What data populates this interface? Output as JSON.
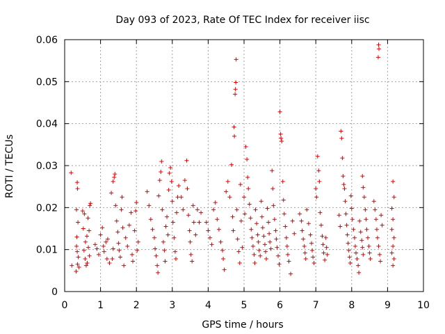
{
  "chart_data": {
    "type": "scatter",
    "title": "Day 093 of 2023, Rate Of TEC Index for receiver iisc",
    "xlabel": "GPS time / hours",
    "ylabel": "ROTI / TECUs",
    "xlim": [
      0,
      10
    ],
    "ylim": [
      0,
      0.06
    ],
    "x_ticks": [
      0,
      1,
      2,
      3,
      4,
      5,
      6,
      7,
      8,
      9,
      10
    ],
    "y_ticks": [
      0,
      0.01,
      0.02,
      0.03,
      0.04,
      0.05,
      0.06
    ],
    "x_tick_labels": [
      "0",
      "1",
      "2",
      "3",
      "4",
      "5",
      "6",
      "7",
      "8",
      "9",
      "10"
    ],
    "y_tick_labels": [
      "0",
      "0.01",
      "0.02",
      "0.03",
      "0.04",
      "0.05",
      "0.06"
    ],
    "grid": true,
    "marker": "plus",
    "color": "#e00000",
    "points": [
      [
        0.18,
        0.0283
      ],
      [
        0.2,
        0.0062
      ],
      [
        0.35,
        0.026
      ],
      [
        0.36,
        0.0245
      ],
      [
        0.33,
        0.0195
      ],
      [
        0.34,
        0.013
      ],
      [
        0.35,
        0.0095
      ],
      [
        0.36,
        0.0065
      ],
      [
        0.32,
        0.0048
      ],
      [
        0.38,
        0.0082
      ],
      [
        0.33,
        0.0108
      ],
      [
        0.37,
        0.0165
      ],
      [
        0.4,
        0.0058
      ],
      [
        0.5,
        0.0192
      ],
      [
        0.55,
        0.0185
      ],
      [
        0.52,
        0.015
      ],
      [
        0.58,
        0.0118
      ],
      [
        0.54,
        0.0098
      ],
      [
        0.57,
        0.0078
      ],
      [
        0.6,
        0.0062
      ],
      [
        0.62,
        0.0132
      ],
      [
        0.65,
        0.0175
      ],
      [
        0.68,
        0.0145
      ],
      [
        0.7,
        0.0205
      ],
      [
        0.72,
        0.021
      ],
      [
        0.66,
        0.0105
      ],
      [
        0.69,
        0.0085
      ],
      [
        0.63,
        0.0068
      ],
      [
        0.85,
        0.0112
      ],
      [
        0.9,
        0.0102
      ],
      [
        0.95,
        0.0088
      ],
      [
        1.0,
        0.0135
      ],
      [
        1.05,
        0.0152
      ],
      [
        1.08,
        0.0108
      ],
      [
        1.1,
        0.0095
      ],
      [
        1.15,
        0.0118
      ],
      [
        1.18,
        0.0078
      ],
      [
        1.2,
        0.0125
      ],
      [
        1.25,
        0.0068
      ],
      [
        1.3,
        0.0235
      ],
      [
        1.35,
        0.0262
      ],
      [
        1.38,
        0.0272
      ],
      [
        1.4,
        0.028
      ],
      [
        1.42,
        0.0205
      ],
      [
        1.45,
        0.0168
      ],
      [
        1.48,
        0.0142
      ],
      [
        1.5,
        0.0115
      ],
      [
        1.52,
        0.0098
      ],
      [
        1.55,
        0.0082
      ],
      [
        1.58,
        0.0195
      ],
      [
        1.6,
        0.0225
      ],
      [
        1.62,
        0.0152
      ],
      [
        1.65,
        0.0062
      ],
      [
        1.35,
        0.0102
      ],
      [
        1.33,
        0.0078
      ],
      [
        1.7,
        0.0128
      ],
      [
        1.75,
        0.0108
      ],
      [
        1.8,
        0.0158
      ],
      [
        1.85,
        0.0188
      ],
      [
        1.88,
        0.0088
      ],
      [
        1.9,
        0.0072
      ],
      [
        1.95,
        0.0145
      ],
      [
        1.98,
        0.0192
      ],
      [
        2.0,
        0.0212
      ],
      [
        2.02,
        0.0098
      ],
      [
        2.05,
        0.0118
      ],
      [
        2.3,
        0.0238
      ],
      [
        2.35,
        0.0205
      ],
      [
        2.4,
        0.0172
      ],
      [
        2.45,
        0.0148
      ],
      [
        2.5,
        0.0128
      ],
      [
        2.52,
        0.0102
      ],
      [
        2.55,
        0.0085
      ],
      [
        2.58,
        0.0062
      ],
      [
        2.6,
        0.0045
      ],
      [
        2.62,
        0.0228
      ],
      [
        2.65,
        0.0265
      ],
      [
        2.68,
        0.0285
      ],
      [
        2.7,
        0.031
      ],
      [
        2.72,
        0.0195
      ],
      [
        2.75,
        0.0118
      ],
      [
        2.78,
        0.0098
      ],
      [
        2.8,
        0.0072
      ],
      [
        2.82,
        0.0155
      ],
      [
        2.85,
        0.0178
      ],
      [
        2.88,
        0.0135
      ],
      [
        2.9,
        0.0242
      ],
      [
        2.92,
        0.0282
      ],
      [
        2.95,
        0.0295
      ],
      [
        2.98,
        0.0262
      ],
      [
        3.0,
        0.0215
      ],
      [
        3.02,
        0.0165
      ],
      [
        3.05,
        0.0128
      ],
      [
        3.08,
        0.0095
      ],
      [
        3.1,
        0.0078
      ],
      [
        3.12,
        0.0188
      ],
      [
        3.15,
        0.0225
      ],
      [
        3.18,
        0.0252
      ],
      [
        3.25,
        0.0225
      ],
      [
        3.3,
        0.0195
      ],
      [
        3.35,
        0.0265
      ],
      [
        3.4,
        0.0312
      ],
      [
        3.42,
        0.0245
      ],
      [
        3.45,
        0.0182
      ],
      [
        3.48,
        0.0145
      ],
      [
        3.5,
        0.0118
      ],
      [
        3.52,
        0.0088
      ],
      [
        3.55,
        0.0072
      ],
      [
        3.58,
        0.0205
      ],
      [
        3.6,
        0.0165
      ],
      [
        3.65,
        0.0135
      ],
      [
        3.7,
        0.0195
      ],
      [
        3.75,
        0.0165
      ],
      [
        3.8,
        0.0188
      ],
      [
        3.95,
        0.0165
      ],
      [
        4.0,
        0.0145
      ],
      [
        4.05,
        0.0128
      ],
      [
        4.1,
        0.0112
      ],
      [
        4.15,
        0.0195
      ],
      [
        4.2,
        0.0212
      ],
      [
        4.25,
        0.0172
      ],
      [
        4.3,
        0.0148
      ],
      [
        4.35,
        0.0118
      ],
      [
        4.4,
        0.0098
      ],
      [
        4.42,
        0.0078
      ],
      [
        4.45,
        0.0052
      ],
      [
        4.5,
        0.0238
      ],
      [
        4.55,
        0.0262
      ],
      [
        4.6,
        0.0225
      ],
      [
        4.65,
        0.0302
      ],
      [
        4.68,
        0.0178
      ],
      [
        4.7,
        0.0145
      ],
      [
        4.72,
        0.0392
      ],
      [
        4.73,
        0.037
      ],
      [
        4.75,
        0.047
      ],
      [
        4.76,
        0.0482
      ],
      [
        4.77,
        0.0498
      ],
      [
        4.78,
        0.0553
      ],
      [
        4.8,
        0.0195
      ],
      [
        4.82,
        0.0125
      ],
      [
        4.85,
        0.0095
      ],
      [
        4.88,
        0.0068
      ],
      [
        4.9,
        0.0255
      ],
      [
        4.92,
        0.0168
      ],
      [
        4.95,
        0.0105
      ],
      [
        5.0,
        0.0225
      ],
      [
        5.02,
        0.0185
      ],
      [
        5.05,
        0.0345
      ],
      [
        5.08,
        0.0315
      ],
      [
        5.1,
        0.0272
      ],
      [
        5.12,
        0.0245
      ],
      [
        5.15,
        0.0208
      ],
      [
        5.18,
        0.0175
      ],
      [
        5.2,
        0.0148
      ],
      [
        5.22,
        0.0128
      ],
      [
        5.25,
        0.0108
      ],
      [
        5.28,
        0.0088
      ],
      [
        5.3,
        0.0068
      ],
      [
        5.32,
        0.0195
      ],
      [
        5.35,
        0.0162
      ],
      [
        5.38,
        0.0135
      ],
      [
        5.4,
        0.0118
      ],
      [
        5.42,
        0.0098
      ],
      [
        5.45,
        0.0085
      ],
      [
        5.48,
        0.0215
      ],
      [
        5.5,
        0.0178
      ],
      [
        5.52,
        0.0152
      ],
      [
        5.55,
        0.0132
      ],
      [
        5.58,
        0.0112
      ],
      [
        5.6,
        0.0095
      ],
      [
        5.62,
        0.0078
      ],
      [
        5.65,
        0.0198
      ],
      [
        5.68,
        0.0165
      ],
      [
        5.7,
        0.0138
      ],
      [
        5.72,
        0.0118
      ],
      [
        5.75,
        0.0102
      ],
      [
        5.78,
        0.0288
      ],
      [
        5.8,
        0.0245
      ],
      [
        5.82,
        0.0205
      ],
      [
        5.85,
        0.0172
      ],
      [
        5.88,
        0.0145
      ],
      [
        5.9,
        0.0125
      ],
      [
        5.92,
        0.0105
      ],
      [
        5.95,
        0.0085
      ],
      [
        5.98,
        0.0065
      ],
      [
        6.0,
        0.0428
      ],
      [
        6.02,
        0.0375
      ],
      [
        6.03,
        0.0365
      ],
      [
        6.05,
        0.0358
      ],
      [
        6.08,
        0.0262
      ],
      [
        6.1,
        0.0218
      ],
      [
        6.12,
        0.0185
      ],
      [
        6.15,
        0.0155
      ],
      [
        6.18,
        0.0128
      ],
      [
        6.2,
        0.0108
      ],
      [
        6.22,
        0.0088
      ],
      [
        6.25,
        0.0072
      ],
      [
        6.3,
        0.0042
      ],
      [
        6.35,
        0.0168
      ],
      [
        6.4,
        0.0138
      ],
      [
        6.55,
        0.0185
      ],
      [
        6.6,
        0.0168
      ],
      [
        6.62,
        0.0145
      ],
      [
        6.65,
        0.0125
      ],
      [
        6.68,
        0.0108
      ],
      [
        6.7,
        0.0092
      ],
      [
        6.72,
        0.0078
      ],
      [
        6.75,
        0.0195
      ],
      [
        6.8,
        0.0162
      ],
      [
        6.85,
        0.0135
      ],
      [
        6.88,
        0.0115
      ],
      [
        6.9,
        0.0098
      ],
      [
        6.92,
        0.0082
      ],
      [
        6.95,
        0.0068
      ],
      [
        7.0,
        0.0245
      ],
      [
        7.02,
        0.0225
      ],
      [
        7.05,
        0.0322
      ],
      [
        7.08,
        0.0288
      ],
      [
        7.1,
        0.0262
      ],
      [
        7.12,
        0.0188
      ],
      [
        7.15,
        0.0158
      ],
      [
        7.18,
        0.0132
      ],
      [
        7.2,
        0.0112
      ],
      [
        7.22,
        0.0092
      ],
      [
        7.25,
        0.0075
      ],
      [
        7.28,
        0.0128
      ],
      [
        7.3,
        0.0105
      ],
      [
        7.32,
        0.0088
      ],
      [
        7.65,
        0.0182
      ],
      [
        7.68,
        0.0155
      ],
      [
        7.7,
        0.0382
      ],
      [
        7.72,
        0.0365
      ],
      [
        7.74,
        0.0318
      ],
      [
        7.76,
        0.0275
      ],
      [
        7.78,
        0.0255
      ],
      [
        7.8,
        0.0245
      ],
      [
        7.82,
        0.0215
      ],
      [
        7.84,
        0.0185
      ],
      [
        7.86,
        0.0158
      ],
      [
        7.88,
        0.0135
      ],
      [
        7.9,
        0.0115
      ],
      [
        7.92,
        0.0098
      ],
      [
        7.94,
        0.0082
      ],
      [
        7.96,
        0.0068
      ],
      [
        7.98,
        0.0228
      ],
      [
        8.0,
        0.0198
      ],
      [
        8.02,
        0.0172
      ],
      [
        8.05,
        0.0148
      ],
      [
        8.08,
        0.0128
      ],
      [
        8.1,
        0.0108
      ],
      [
        8.12,
        0.0092
      ],
      [
        8.15,
        0.0078
      ],
      [
        8.18,
        0.0062
      ],
      [
        8.2,
        0.0045
      ],
      [
        8.22,
        0.0168
      ],
      [
        8.25,
        0.0142
      ],
      [
        8.28,
        0.0122
      ],
      [
        8.3,
        0.0105
      ],
      [
        8.32,
        0.0088
      ],
      [
        8.3,
        0.0275
      ],
      [
        8.32,
        0.0248
      ],
      [
        8.35,
        0.0225
      ],
      [
        8.38,
        0.0195
      ],
      [
        8.4,
        0.0172
      ],
      [
        8.42,
        0.0148
      ],
      [
        8.45,
        0.0128
      ],
      [
        8.48,
        0.0108
      ],
      [
        8.5,
        0.0092
      ],
      [
        8.52,
        0.0078
      ],
      [
        8.62,
        0.0215
      ],
      [
        8.65,
        0.0195
      ],
      [
        8.68,
        0.0172
      ],
      [
        8.7,
        0.0148
      ],
      [
        8.72,
        0.0128
      ],
      [
        8.75,
        0.0108
      ],
      [
        8.78,
        0.0088
      ],
      [
        8.8,
        0.0072
      ],
      [
        8.75,
        0.0588
      ],
      [
        8.76,
        0.0578
      ],
      [
        8.74,
        0.0558
      ],
      [
        8.82,
        0.0182
      ],
      [
        8.85,
        0.0158
      ],
      [
        9.15,
        0.0262
      ],
      [
        9.18,
        0.0225
      ],
      [
        9.12,
        0.0198
      ],
      [
        9.15,
        0.0172
      ],
      [
        9.12,
        0.0148
      ],
      [
        9.18,
        0.0128
      ],
      [
        9.15,
        0.0108
      ],
      [
        9.12,
        0.0092
      ],
      [
        9.18,
        0.0078
      ],
      [
        9.15,
        0.0062
      ]
    ]
  }
}
